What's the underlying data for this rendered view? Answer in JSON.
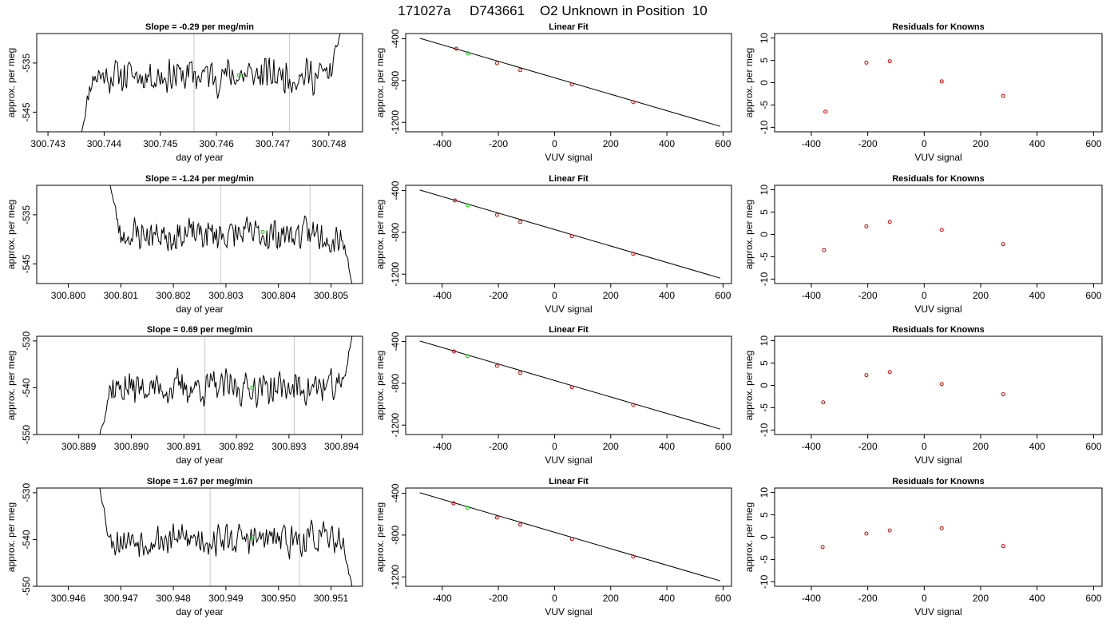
{
  "figure_title": "171027a     D743661    O2 Unknown in Position  10",
  "colors": {
    "frame": "#000000",
    "trace": "#000000",
    "marker_vline": "#c8c8c8",
    "unknown_point": "#00cc00",
    "known_point": "#cc0000",
    "fit_line": "#000000"
  },
  "chart_data": [
    {
      "type": "line",
      "row": 1,
      "title": "Slope =  -0.29  per meg/min",
      "xlabel": "day of year",
      "ylabel": "approx. per meg",
      "xlim": [
        300.7428,
        300.7486
      ],
      "ylim": [
        -549,
        -529
      ],
      "xticks": [
        "300.743",
        "300.744",
        "300.745",
        "300.746",
        "300.747",
        "300.748"
      ],
      "yticks": [
        "-535",
        "-545"
      ],
      "ytick_values": [
        -535,
        -545
      ],
      "vlines": [
        300.7456,
        300.7473
      ],
      "unknown_point": {
        "x": 300.7464,
        "y": -537.5
      },
      "trace_start": [
        300.7436,
        -549
      ],
      "trace_end": [
        300.7482,
        -529
      ],
      "trace_level": -537.5,
      "trace_noise": 2.8,
      "seed": 11
    },
    {
      "type": "scatter",
      "row": 1,
      "title": "Linear Fit",
      "xlabel": "VUV signal",
      "ylabel": "approx. per meg",
      "xlim": [
        -530,
        630
      ],
      "ylim": [
        -1290,
        -350
      ],
      "xticks": [
        "-400",
        "-200",
        "0",
        "200",
        "400",
        "600"
      ],
      "yticks": [
        "-400",
        "-800",
        "-1200"
      ],
      "known_points": {
        "x": [
          -350,
          -205,
          -122,
          62,
          280
        ],
        "y": [
          -495,
          -633,
          -700,
          -837,
          -1006
        ]
      },
      "unknown_point": {
        "x": -307,
        "y": -540
      },
      "fit_line": {
        "x": [
          -480,
          590
        ],
        "y": [
          -395,
          -1238
        ]
      }
    },
    {
      "type": "scatter",
      "row": 1,
      "title": "Residuals for Knowns",
      "xlabel": "VUV signal",
      "ylabel": "approx. per meg",
      "xlim": [
        -530,
        630
      ],
      "ylim": [
        -11,
        11
      ],
      "xticks": [
        "-400",
        "-200",
        "0",
        "200",
        "400",
        "600"
      ],
      "yticks": [
        "10",
        "5",
        "0",
        "-5",
        "-10"
      ],
      "known_points": {
        "x": [
          -350,
          -205,
          -122,
          62,
          280
        ],
        "y": [
          -6.5,
          4.5,
          4.8,
          0.3,
          -3.0
        ]
      }
    },
    {
      "type": "line",
      "row": 2,
      "title": "Slope =  -1.24  per meg/min",
      "xlabel": "day of year",
      "ylabel": "approx. per meg",
      "xlim": [
        300.7994,
        300.8056
      ],
      "ylim": [
        -549,
        -529
      ],
      "xticks": [
        "300.800",
        "300.801",
        "300.802",
        "300.803",
        "300.804",
        "300.805"
      ],
      "yticks": [
        "-535",
        "-545"
      ],
      "ytick_values": [
        -535,
        -545
      ],
      "vlines": [
        300.8029,
        300.8046
      ],
      "unknown_point": {
        "x": 300.8037,
        "y": -538.5
      },
      "trace_start": [
        300.8008,
        -529
      ],
      "trace_end": [
        300.8054,
        -549
      ],
      "trace_level": -539.0,
      "trace_noise": 2.6,
      "seed": 23
    },
    {
      "type": "scatter",
      "row": 2,
      "title": "Linear Fit",
      "xlabel": "VUV signal",
      "ylabel": "approx. per meg",
      "xlim": [
        -530,
        630
      ],
      "ylim": [
        -1290,
        -350
      ],
      "xticks": [
        "-400",
        "-200",
        "0",
        "200",
        "400",
        "600"
      ],
      "yticks": [
        "-400",
        "-800",
        "-1200"
      ],
      "known_points": {
        "x": [
          -355,
          -205,
          -122,
          62,
          280
        ],
        "y": [
          -495,
          -633,
          -700,
          -837,
          -1006
        ]
      },
      "unknown_point": {
        "x": -310,
        "y": -540
      },
      "fit_line": {
        "x": [
          -480,
          590
        ],
        "y": [
          -395,
          -1238
        ]
      }
    },
    {
      "type": "scatter",
      "row": 2,
      "title": "Residuals for Knowns",
      "xlabel": "VUV signal",
      "ylabel": "approx. per meg",
      "xlim": [
        -530,
        630
      ],
      "ylim": [
        -11,
        11
      ],
      "xticks": [
        "-400",
        "-200",
        "0",
        "200",
        "400",
        "600"
      ],
      "yticks": [
        "10",
        "5",
        "0",
        "-5",
        "-10"
      ],
      "known_points": {
        "x": [
          -355,
          -205,
          -122,
          62,
          280
        ],
        "y": [
          -3.5,
          1.8,
          2.8,
          1.0,
          -2.2
        ]
      }
    },
    {
      "type": "line",
      "row": 3,
      "title": "Slope =  0.69  per meg/min",
      "xlabel": "day of year",
      "ylabel": "approx. per meg",
      "xlim": [
        300.8882,
        300.8944
      ],
      "ylim": [
        -550,
        -529
      ],
      "xticks": [
        "300.889",
        "300.890",
        "300.891",
        "300.892",
        "300.893",
        "300.894"
      ],
      "yticks": [
        "-530",
        "-540",
        "-550"
      ],
      "ytick_values": [
        -530,
        -540,
        -550
      ],
      "vlines": [
        300.8914,
        300.8931
      ],
      "unknown_point": {
        "x": 300.8923,
        "y": -540
      },
      "trace_start": [
        300.8894,
        -550
      ],
      "trace_end": [
        300.8942,
        -529
      ],
      "trace_level": -540.0,
      "trace_noise": 2.8,
      "seed": 37
    },
    {
      "type": "scatter",
      "row": 3,
      "title": "Linear Fit",
      "xlabel": "VUV signal",
      "ylabel": "approx. per meg",
      "xlim": [
        -530,
        630
      ],
      "ylim": [
        -1290,
        -350
      ],
      "xticks": [
        "-400",
        "-200",
        "0",
        "200",
        "400",
        "600"
      ],
      "yticks": [
        "-400",
        "-800",
        "-1200"
      ],
      "known_points": {
        "x": [
          -358,
          -205,
          -122,
          62,
          280
        ],
        "y": [
          -495,
          -633,
          -700,
          -837,
          -1006
        ]
      },
      "unknown_point": {
        "x": -310,
        "y": -540
      },
      "fit_line": {
        "x": [
          -480,
          590
        ],
        "y": [
          -395,
          -1238
        ]
      }
    },
    {
      "type": "scatter",
      "row": 3,
      "title": "Residuals for Knowns",
      "xlabel": "VUV signal",
      "ylabel": "approx. per meg",
      "xlim": [
        -530,
        630
      ],
      "ylim": [
        -11,
        11
      ],
      "xticks": [
        "-400",
        "-200",
        "0",
        "200",
        "400",
        "600"
      ],
      "yticks": [
        "10",
        "5",
        "0",
        "-5",
        "-10"
      ],
      "known_points": {
        "x": [
          -358,
          -205,
          -122,
          62,
          280
        ],
        "y": [
          -3.8,
          2.3,
          3.0,
          0.3,
          -2.0
        ]
      }
    },
    {
      "type": "line",
      "row": 4,
      "title": "Slope =  1.67  per meg/min",
      "xlabel": "day of year",
      "ylabel": "approx. per meg",
      "xlim": [
        300.9454,
        300.9516
      ],
      "ylim": [
        -550,
        -529
      ],
      "xticks": [
        "300.946",
        "300.947",
        "300.948",
        "300.949",
        "300.950",
        "300.951"
      ],
      "yticks": [
        "-530",
        "-540",
        "-550"
      ],
      "ytick_values": [
        -530,
        -540,
        -550
      ],
      "vlines": [
        300.9487,
        300.9504
      ],
      "unknown_point": {
        "x": 300.9495,
        "y": -539.5
      },
      "trace_start": [
        300.9466,
        -529
      ],
      "trace_end": [
        300.9514,
        -550
      ],
      "trace_level": -540.0,
      "trace_noise": 2.6,
      "seed": 53
    },
    {
      "type": "scatter",
      "row": 4,
      "title": "Linear Fit",
      "xlabel": "VUV signal",
      "ylabel": "approx. per meg",
      "xlim": [
        -530,
        630
      ],
      "ylim": [
        -1290,
        -350
      ],
      "xticks": [
        "-400",
        "-200",
        "0",
        "200",
        "400",
        "600"
      ],
      "yticks": [
        "-400",
        "-800",
        "-1200"
      ],
      "known_points": {
        "x": [
          -360,
          -205,
          -122,
          62,
          280
        ],
        "y": [
          -495,
          -633,
          -700,
          -837,
          -1006
        ]
      },
      "unknown_point": {
        "x": -310,
        "y": -540
      },
      "fit_line": {
        "x": [
          -480,
          590
        ],
        "y": [
          -395,
          -1238
        ]
      }
    },
    {
      "type": "scatter",
      "row": 4,
      "title": "Residuals for Knowns",
      "xlabel": "VUV signal",
      "ylabel": "approx. per meg",
      "xlim": [
        -530,
        630
      ],
      "ylim": [
        -11,
        11
      ],
      "xticks": [
        "-400",
        "-200",
        "0",
        "200",
        "400",
        "600"
      ],
      "yticks": [
        "10",
        "5",
        "0",
        "-5",
        "-10"
      ],
      "known_points": {
        "x": [
          -360,
          -205,
          -122,
          62,
          280
        ],
        "y": [
          -2.2,
          0.8,
          1.5,
          2.0,
          -2.0
        ]
      }
    }
  ]
}
